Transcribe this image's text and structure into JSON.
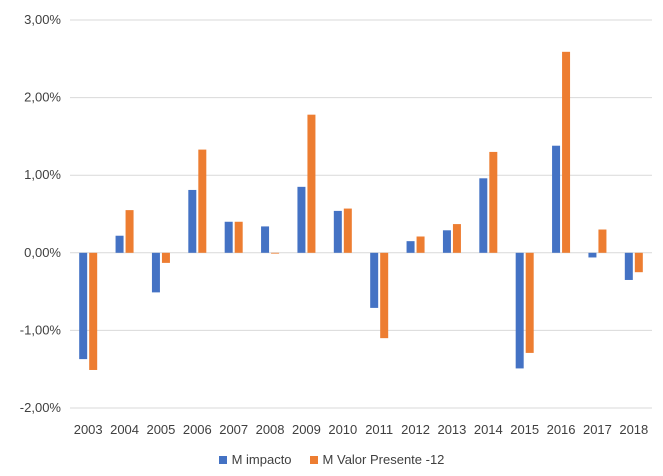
{
  "chart_data": {
    "type": "bar",
    "title": "",
    "xlabel": "",
    "ylabel": "",
    "ylim": [
      -2,
      3
    ],
    "y_ticks": [
      "3,00%",
      "2,00%",
      "1,00%",
      "0,00%",
      "-1,00%",
      "-2,00%"
    ],
    "y_tick_values": [
      3,
      2,
      1,
      0,
      -1,
      -2
    ],
    "grid": true,
    "legend_position": "bottom",
    "categories": [
      "2003",
      "2004",
      "2005",
      "2006",
      "2007",
      "2008",
      "2009",
      "2010",
      "2011",
      "2012",
      "2013",
      "2014",
      "2015",
      "2016",
      "2017",
      "2018"
    ],
    "series": [
      {
        "name": "M impacto",
        "color": "#4472c4",
        "values": [
          -1.37,
          0.22,
          -0.51,
          0.81,
          0.4,
          0.34,
          0.85,
          0.54,
          -0.71,
          0.15,
          0.29,
          0.96,
          -1.49,
          1.38,
          -0.06,
          -0.35
        ]
      },
      {
        "name": "M Valor Presente -12",
        "color": "#ed7d31",
        "values": [
          -1.51,
          0.55,
          -0.13,
          1.33,
          0.4,
          -0.01,
          1.78,
          0.57,
          -1.1,
          0.21,
          0.37,
          1.3,
          -1.29,
          2.59,
          0.3,
          -0.25
        ]
      }
    ]
  }
}
